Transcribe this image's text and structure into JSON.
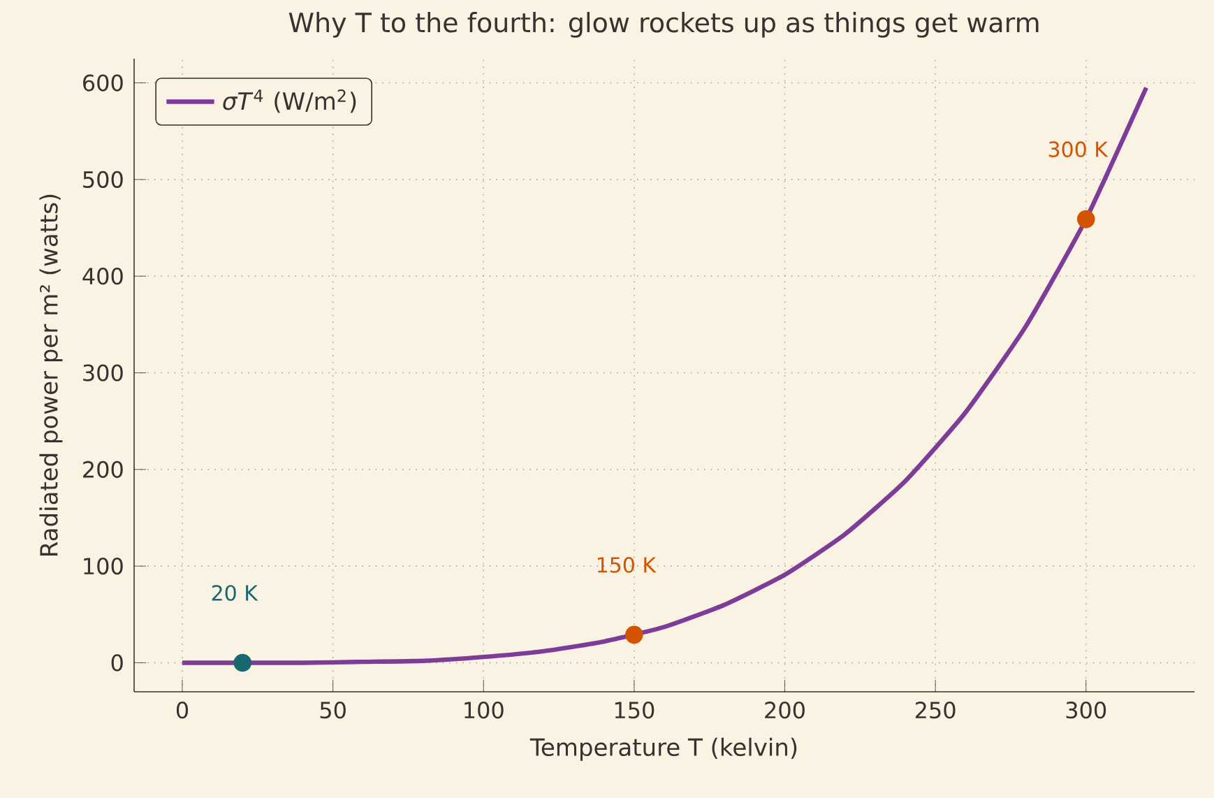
{
  "chart_data": {
    "type": "line",
    "title": "Why T to the fourth: glow rockets up as things get warm",
    "xlabel": "Temperature T (kelvin)",
    "ylabel": "Radiated power per m² (watts)",
    "series": [
      {
        "name": "*σT*$^{4}$ (W/m$^{2}$)",
        "marker": "none",
        "color": "#7d3c98",
        "x": [
          0,
          20,
          40,
          60,
          80,
          100,
          120,
          140,
          160,
          180,
          200,
          220,
          240,
          260,
          280,
          300,
          320
        ],
        "values": [
          0,
          0,
          0,
          1,
          2,
          6,
          12,
          22,
          37,
          60,
          91,
          133,
          188,
          259,
          348,
          459,
          595
        ]
      },
      {
        "type": "scatter",
        "x": [
          20,
          150,
          300
        ],
        "values": [
          0,
          29,
          459
        ],
        "colors": [
          "#17696f",
          "#d35400",
          "#d35400"
        ]
      }
    ],
    "annotations": [
      {
        "text": "20 K",
        "x": 20,
        "y": 0
      },
      {
        "text": "150 K",
        "x": 150,
        "y": 29
      },
      {
        "text": "300 K",
        "x": 300,
        "y": 459
      }
    ],
    "xlim": [
      -16,
      336
    ],
    "ylim": [
      -30,
      625
    ],
    "xticks": [
      0,
      50,
      100,
      150,
      200,
      250,
      300
    ],
    "yticks": [
      0,
      100,
      200,
      300,
      400,
      500,
      600
    ],
    "grid": true,
    "legend": "top left",
    "marker": "circle"
  }
}
